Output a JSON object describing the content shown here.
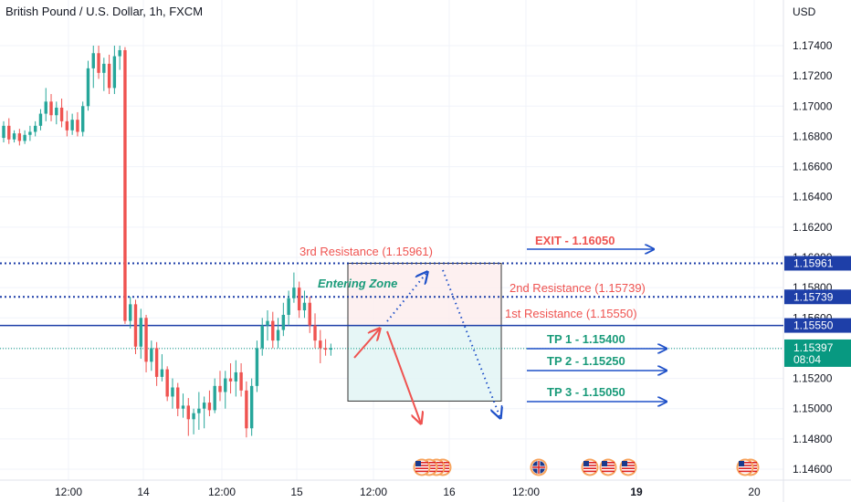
{
  "title": "British Pound / U.S. Dollar, 1h, FXCM",
  "currency": "USD",
  "colors": {
    "bull": "#26a69a",
    "bear": "#ef5350",
    "resistance": "#1e3fa8",
    "text_red": "#ef5350",
    "text_green": "#1a9b7a",
    "arrow_blue": "#1e50c8",
    "grid": "#f0f3fa"
  },
  "y_ticks": [
    "1.17400",
    "1.17200",
    "1.17000",
    "1.16800",
    "1.16600",
    "1.16400",
    "1.16200",
    "1.16000",
    "1.15800",
    "1.15600",
    "1.15400",
    "1.15200",
    "1.15000",
    "1.14800",
    "1.14600"
  ],
  "x_ticks": [
    "12:00",
    "14",
    "12:00",
    "15",
    "12:00",
    "16",
    "12:00",
    "19",
    "20"
  ],
  "price_tags": [
    {
      "label": "1.15961",
      "price": 1.15961,
      "bg": "#1e3fa8"
    },
    {
      "label": "1.15739",
      "price": 1.15739,
      "bg": "#1e3fa8"
    },
    {
      "label": "1.15550",
      "price": 1.1555,
      "bg": "#1e3fa8"
    }
  ],
  "current_price": {
    "price": 1.15397,
    "label": "1.15397",
    "countdown": "08:04",
    "bg": "#089981"
  },
  "levels": {
    "resistance_3": {
      "price": 1.15961,
      "label": "3rd Resistance (1.15961)"
    },
    "resistance_2": {
      "price": 1.15739,
      "label": "2nd Resistance (1.15739)"
    },
    "resistance_1": {
      "price": 1.1555,
      "label": "1st Resistance (1.15550)"
    }
  },
  "annotations": {
    "entering_zone": "Entering Zone",
    "exit": "EXIT - 1.16050",
    "tp1": "TP 1 - 1.15400",
    "tp2": "TP 2 - 1.15250",
    "tp3": "TP 3 - 1.15050"
  },
  "chart_data": {
    "type": "candlestick",
    "title": "British Pound / U.S. Dollar, 1h, FXCM",
    "ylabel": "USD",
    "ylim": [
      1.1454,
      1.1778
    ],
    "grid": true,
    "candles": [
      {
        "o": 1.1679,
        "h": 1.169,
        "l": 1.1676,
        "c": 1.1687
      },
      {
        "o": 1.1687,
        "h": 1.1692,
        "l": 1.1675,
        "c": 1.1678
      },
      {
        "o": 1.1678,
        "h": 1.1684,
        "l": 1.1676,
        "c": 1.1682
      },
      {
        "o": 1.1682,
        "h": 1.1685,
        "l": 1.1674,
        "c": 1.1677
      },
      {
        "o": 1.1677,
        "h": 1.1684,
        "l": 1.1675,
        "c": 1.1681
      },
      {
        "o": 1.1681,
        "h": 1.1687,
        "l": 1.1677,
        "c": 1.1683
      },
      {
        "o": 1.1683,
        "h": 1.169,
        "l": 1.168,
        "c": 1.1687
      },
      {
        "o": 1.1687,
        "h": 1.1698,
        "l": 1.1684,
        "c": 1.1695
      },
      {
        "o": 1.1695,
        "h": 1.1712,
        "l": 1.169,
        "c": 1.1703
      },
      {
        "o": 1.1703,
        "h": 1.1708,
        "l": 1.169,
        "c": 1.1694
      },
      {
        "o": 1.1694,
        "h": 1.1703,
        "l": 1.1688,
        "c": 1.1699
      },
      {
        "o": 1.1699,
        "h": 1.1705,
        "l": 1.1686,
        "c": 1.169
      },
      {
        "o": 1.169,
        "h": 1.1697,
        "l": 1.168,
        "c": 1.1684
      },
      {
        "o": 1.1684,
        "h": 1.1695,
        "l": 1.1681,
        "c": 1.1691
      },
      {
        "o": 1.1691,
        "h": 1.1696,
        "l": 1.168,
        "c": 1.1683
      },
      {
        "o": 1.1683,
        "h": 1.1703,
        "l": 1.168,
        "c": 1.17
      },
      {
        "o": 1.17,
        "h": 1.173,
        "l": 1.1697,
        "c": 1.1725
      },
      {
        "o": 1.1725,
        "h": 1.174,
        "l": 1.1712,
        "c": 1.1735
      },
      {
        "o": 1.1735,
        "h": 1.174,
        "l": 1.1718,
        "c": 1.1722
      },
      {
        "o": 1.1722,
        "h": 1.1732,
        "l": 1.171,
        "c": 1.1728
      },
      {
        "o": 1.1728,
        "h": 1.1734,
        "l": 1.1708,
        "c": 1.1712
      },
      {
        "o": 1.1712,
        "h": 1.174,
        "l": 1.1708,
        "c": 1.1733
      },
      {
        "o": 1.1733,
        "h": 1.174,
        "l": 1.1724,
        "c": 1.1737
      },
      {
        "o": 1.1737,
        "h": 1.1739,
        "l": 1.1556,
        "c": 1.1558
      },
      {
        "o": 1.1558,
        "h": 1.1574,
        "l": 1.1553,
        "c": 1.1569
      },
      {
        "o": 1.1569,
        "h": 1.1572,
        "l": 1.1536,
        "c": 1.1541
      },
      {
        "o": 1.1541,
        "h": 1.1566,
        "l": 1.1533,
        "c": 1.156
      },
      {
        "o": 1.156,
        "h": 1.1562,
        "l": 1.1524,
        "c": 1.1531
      },
      {
        "o": 1.1531,
        "h": 1.1545,
        "l": 1.1525,
        "c": 1.154
      },
      {
        "o": 1.154,
        "h": 1.1544,
        "l": 1.1515,
        "c": 1.1521
      },
      {
        "o": 1.1521,
        "h": 1.1536,
        "l": 1.1518,
        "c": 1.1526
      },
      {
        "o": 1.1526,
        "h": 1.1528,
        "l": 1.1505,
        "c": 1.1508
      },
      {
        "o": 1.1508,
        "h": 1.152,
        "l": 1.15,
        "c": 1.1514
      },
      {
        "o": 1.1514,
        "h": 1.1517,
        "l": 1.1495,
        "c": 1.15
      },
      {
        "o": 1.15,
        "h": 1.151,
        "l": 1.1494,
        "c": 1.1502
      },
      {
        "o": 1.1502,
        "h": 1.1507,
        "l": 1.1482,
        "c": 1.1493
      },
      {
        "o": 1.1493,
        "h": 1.15,
        "l": 1.1483,
        "c": 1.1497
      },
      {
        "o": 1.1497,
        "h": 1.1511,
        "l": 1.1486,
        "c": 1.15
      },
      {
        "o": 1.15,
        "h": 1.1508,
        "l": 1.1487,
        "c": 1.1504
      },
      {
        "o": 1.1504,
        "h": 1.1512,
        "l": 1.1495,
        "c": 1.1499
      },
      {
        "o": 1.1499,
        "h": 1.152,
        "l": 1.1497,
        "c": 1.1515
      },
      {
        "o": 1.1515,
        "h": 1.1525,
        "l": 1.1505,
        "c": 1.1511
      },
      {
        "o": 1.1511,
        "h": 1.1525,
        "l": 1.15,
        "c": 1.152
      },
      {
        "o": 1.152,
        "h": 1.153,
        "l": 1.151,
        "c": 1.1518
      },
      {
        "o": 1.1518,
        "h": 1.1532,
        "l": 1.1508,
        "c": 1.1524
      },
      {
        "o": 1.1524,
        "h": 1.153,
        "l": 1.1508,
        "c": 1.1512
      },
      {
        "o": 1.1512,
        "h": 1.1518,
        "l": 1.1481,
        "c": 1.1487
      },
      {
        "o": 1.1487,
        "h": 1.152,
        "l": 1.1482,
        "c": 1.1515
      },
      {
        "o": 1.1515,
        "h": 1.1545,
        "l": 1.1511,
        "c": 1.154
      },
      {
        "o": 1.154,
        "h": 1.156,
        "l": 1.1535,
        "c": 1.1555
      },
      {
        "o": 1.1555,
        "h": 1.1565,
        "l": 1.1545,
        "c": 1.1558
      },
      {
        "o": 1.1558,
        "h": 1.1564,
        "l": 1.154,
        "c": 1.1545
      },
      {
        "o": 1.1545,
        "h": 1.156,
        "l": 1.154,
        "c": 1.1552
      },
      {
        "o": 1.1552,
        "h": 1.157,
        "l": 1.1548,
        "c": 1.1562
      },
      {
        "o": 1.1562,
        "h": 1.1578,
        "l": 1.1555,
        "c": 1.1573
      },
      {
        "o": 1.1573,
        "h": 1.159,
        "l": 1.157,
        "c": 1.158
      },
      {
        "o": 1.158,
        "h": 1.1584,
        "l": 1.156,
        "c": 1.1565
      },
      {
        "o": 1.1565,
        "h": 1.1578,
        "l": 1.156,
        "c": 1.157
      },
      {
        "o": 1.157,
        "h": 1.1574,
        "l": 1.155,
        "c": 1.1555
      },
      {
        "o": 1.1555,
        "h": 1.1563,
        "l": 1.154,
        "c": 1.1545
      },
      {
        "o": 1.1545,
        "h": 1.1552,
        "l": 1.153,
        "c": 1.154
      },
      {
        "o": 1.154,
        "h": 1.1546,
        "l": 1.1535,
        "c": 1.1539
      },
      {
        "o": 1.1539,
        "h": 1.1543,
        "l": 1.1535,
        "c": 1.154
      }
    ]
  }
}
